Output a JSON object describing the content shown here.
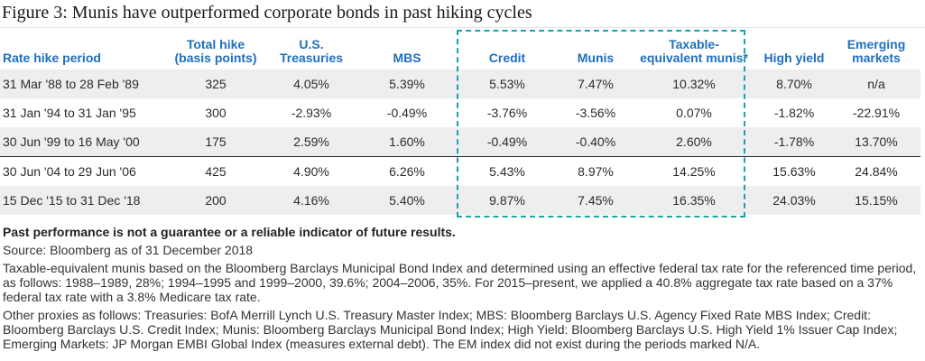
{
  "title": "Figure 3: Munis have outperformed corporate bonds in past hiking cycles",
  "chart_data": {
    "type": "table",
    "title": "Figure 3: Munis have outperformed corporate bonds in past hiking cycles",
    "columns": [
      "Rate hike period",
      "Total hike (basis points)",
      "U.S. Treasuries",
      "MBS",
      "Credit",
      "Munis",
      "Taxable-equivalent munis*",
      "High yield",
      "Emerging markets"
    ],
    "column_lines": [
      [
        "Rate hike period"
      ],
      [
        "Total hike",
        "(basis points)"
      ],
      [
        "U.S.",
        "Treasuries"
      ],
      [
        "MBS"
      ],
      [
        "Credit"
      ],
      [
        "Munis"
      ],
      [
        "Taxable-",
        "equivalent munis*"
      ],
      [
        "High yield"
      ],
      [
        "Emerging",
        "markets"
      ]
    ],
    "rows": [
      [
        "31 Mar '88 to 28 Feb '89",
        "325",
        "4.05%",
        "5.39%",
        "5.53%",
        "7.47%",
        "10.32%",
        "8.70%",
        "n/a"
      ],
      [
        "31 Jan '94 to 31 Jan '95",
        "300",
        "-2.93%",
        "-0.49%",
        "-3.76%",
        "-3.56%",
        "0.07%",
        "-1.82%",
        "-22.91%"
      ],
      [
        "30 Jun '99 to 16 May '00",
        "175",
        "2.59%",
        "1.60%",
        "-0.49%",
        "-0.40%",
        "2.60%",
        "-1.78%",
        "13.70%"
      ],
      [
        "30 Jun '04 to 29 Jun '06",
        "425",
        "4.90%",
        "6.26%",
        "5.43%",
        "8.97%",
        "14.25%",
        "15.63%",
        "24.84%"
      ],
      [
        "15 Dec '15 to 31 Dec '18",
        "200",
        "4.16%",
        "5.40%",
        "9.87%",
        "7.45%",
        "16.35%",
        "24.03%",
        "15.15%"
      ]
    ],
    "highlighted_columns": [
      "Credit",
      "Munis",
      "Taxable-equivalent munis*"
    ]
  },
  "colors": {
    "header_text": "#1f6fbf",
    "highlight_border": "#1ba3a8",
    "row_shade": "#eeeeee"
  },
  "notes": {
    "disclaimer": "Past performance is not a guarantee or a reliable indicator of future results.",
    "source": "Source: Bloomberg as of 31 December 2018",
    "taxable_note": "Taxable-equivalent munis based on the Bloomberg Barclays Municipal Bond Index and determined using an effective federal tax rate for the referenced time period, as follows: 1988–1989, 28%; 1994–1995 and 1999–2000, 39.6%; 2004–2006, 35%. For 2015–present, we applied a 40.8% aggregate tax rate based on a 37% federal tax rate with a 3.8% Medicare tax rate.",
    "proxies": "Other proxies as follows: Treasuries: BofA Merrill Lynch U.S. Treasury Master Index; MBS: Bloomberg Barclays U.S. Agency Fixed Rate MBS Index; Credit: Bloomberg Barclays U.S. Credit Index; Munis: Bloomberg Barclays Municipal Bond Index; High Yield: Bloomberg Barclays U.S. High Yield 1% Issuer Cap Index; Emerging Markets: JP Morgan EMBI Global Index (measures external debt). The EM index did not exist during the periods marked N/A."
  }
}
